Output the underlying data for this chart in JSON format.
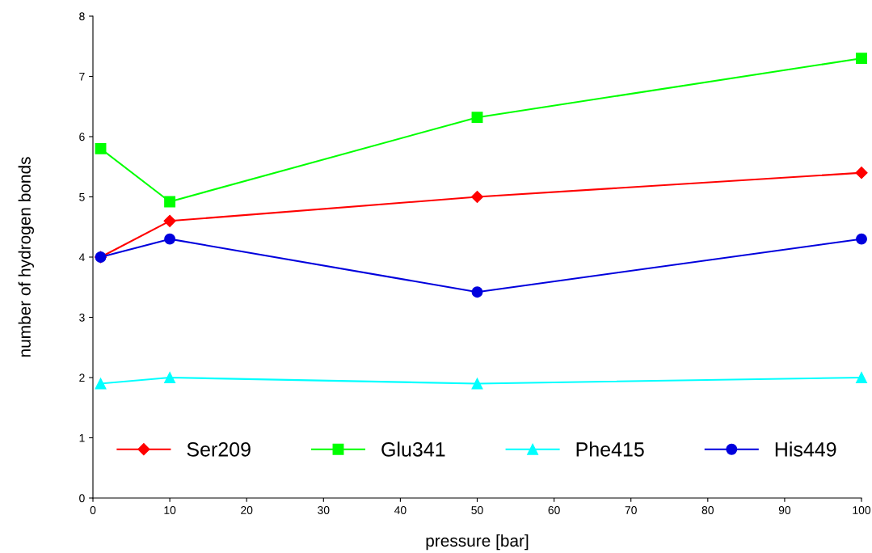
{
  "chart_data": {
    "type": "line",
    "xlabel": "pressure [bar]",
    "ylabel": "number of hydrogen bonds",
    "x": [
      1,
      10,
      50,
      100
    ],
    "series": [
      {
        "name": "Ser209",
        "color": "#ff0000",
        "marker": "diamond",
        "values": [
          4.0,
          4.6,
          5.0,
          5.4
        ]
      },
      {
        "name": "Glu341",
        "color": "#00ff00",
        "marker": "square",
        "values": [
          5.8,
          4.92,
          6.32,
          7.3
        ]
      },
      {
        "name": "Phe415",
        "color": "#00ffff",
        "marker": "triangle",
        "values": [
          1.9,
          2.0,
          1.9,
          2.0
        ]
      },
      {
        "name": "His449",
        "color": "#0000dd",
        "marker": "circle",
        "values": [
          4.0,
          4.3,
          3.42,
          4.3
        ]
      }
    ],
    "xlim": [
      0,
      100
    ],
    "xticks": [
      0,
      10,
      20,
      30,
      40,
      50,
      60,
      70,
      80,
      90,
      100
    ],
    "ylim": [
      0,
      8
    ],
    "yticks": [
      0,
      1,
      2,
      3,
      4,
      5,
      6,
      7,
      8
    ],
    "grid": false,
    "legend": "bottom",
    "line_style": "solid"
  }
}
